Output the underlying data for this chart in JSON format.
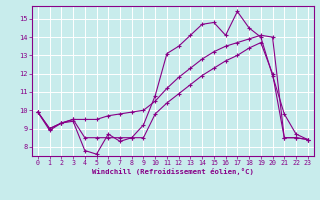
{
  "background_color": "#c8ecec",
  "grid_color": "#ffffff",
  "line_color": "#880088",
  "xlabel": "Windchill (Refroidissement éolien,°C)",
  "xlim": [
    -0.5,
    23.5
  ],
  "ylim": [
    7.5,
    15.7
  ],
  "yticks": [
    8,
    9,
    10,
    11,
    12,
    13,
    14,
    15
  ],
  "xticks": [
    0,
    1,
    2,
    3,
    4,
    5,
    6,
    7,
    8,
    9,
    10,
    11,
    12,
    13,
    14,
    15,
    16,
    17,
    18,
    19,
    20,
    21,
    22,
    23
  ],
  "series": [
    {
      "x": [
        0,
        1,
        2,
        3,
        4,
        5,
        6,
        7,
        8,
        9,
        10,
        11,
        12,
        13,
        14,
        15,
        16,
        17,
        18,
        19,
        20,
        21,
        22,
        23
      ],
      "y": [
        9.9,
        8.9,
        9.3,
        9.4,
        7.8,
        7.6,
        8.7,
        8.3,
        8.5,
        9.2,
        10.8,
        13.1,
        13.5,
        14.1,
        14.7,
        14.8,
        14.1,
        15.4,
        14.5,
        14.0,
        11.9,
        9.8,
        8.7,
        8.4
      ]
    },
    {
      "x": [
        0,
        1,
        2,
        3,
        4,
        5,
        6,
        7,
        8,
        9,
        10,
        11,
        12,
        13,
        14,
        15,
        16,
        17,
        18,
        19,
        20,
        21,
        22,
        23
      ],
      "y": [
        9.9,
        9.0,
        9.3,
        9.5,
        9.5,
        9.5,
        9.7,
        9.8,
        9.9,
        10.0,
        10.5,
        11.2,
        11.8,
        12.3,
        12.8,
        13.2,
        13.5,
        13.7,
        13.9,
        14.1,
        14.0,
        8.5,
        8.5,
        8.4
      ]
    },
    {
      "x": [
        0,
        1,
        2,
        3,
        4,
        5,
        6,
        7,
        8,
        9,
        10,
        11,
        12,
        13,
        14,
        15,
        16,
        17,
        18,
        19,
        20,
        21,
        22,
        23
      ],
      "y": [
        9.9,
        9.0,
        9.3,
        9.5,
        8.5,
        8.5,
        8.5,
        8.5,
        8.5,
        8.5,
        9.8,
        10.4,
        10.9,
        11.4,
        11.9,
        12.3,
        12.7,
        13.0,
        13.4,
        13.7,
        12.0,
        8.5,
        8.5,
        8.4
      ]
    }
  ]
}
